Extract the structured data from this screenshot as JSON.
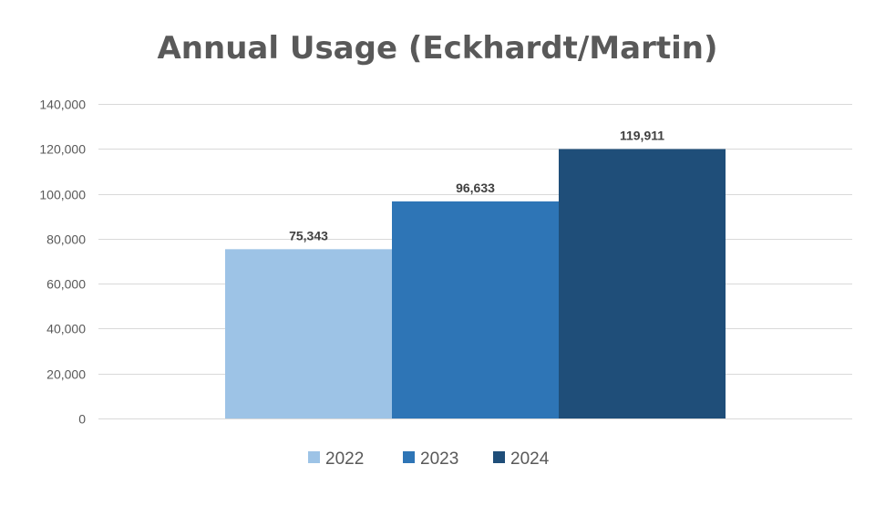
{
  "chart_data": {
    "type": "bar",
    "title": "Annual Usage (Eckhardt/Martin)",
    "xlabel": "",
    "ylabel": "",
    "ylim": [
      0,
      140000
    ],
    "y_ticks": [
      "0",
      "20,000",
      "40,000",
      "60,000",
      "80,000",
      "100,000",
      "120,000",
      "140,000"
    ],
    "grid": true,
    "legend_position": "bottom",
    "series": [
      {
        "name": "2022",
        "value": 75343,
        "label": "75,343",
        "color": "#9dc3e6"
      },
      {
        "name": "2023",
        "value": 96633,
        "label": "96,633",
        "color": "#2e75b6"
      },
      {
        "name": "2024",
        "value": 119911,
        "label": "119,911",
        "color": "#1f4e79"
      }
    ]
  }
}
